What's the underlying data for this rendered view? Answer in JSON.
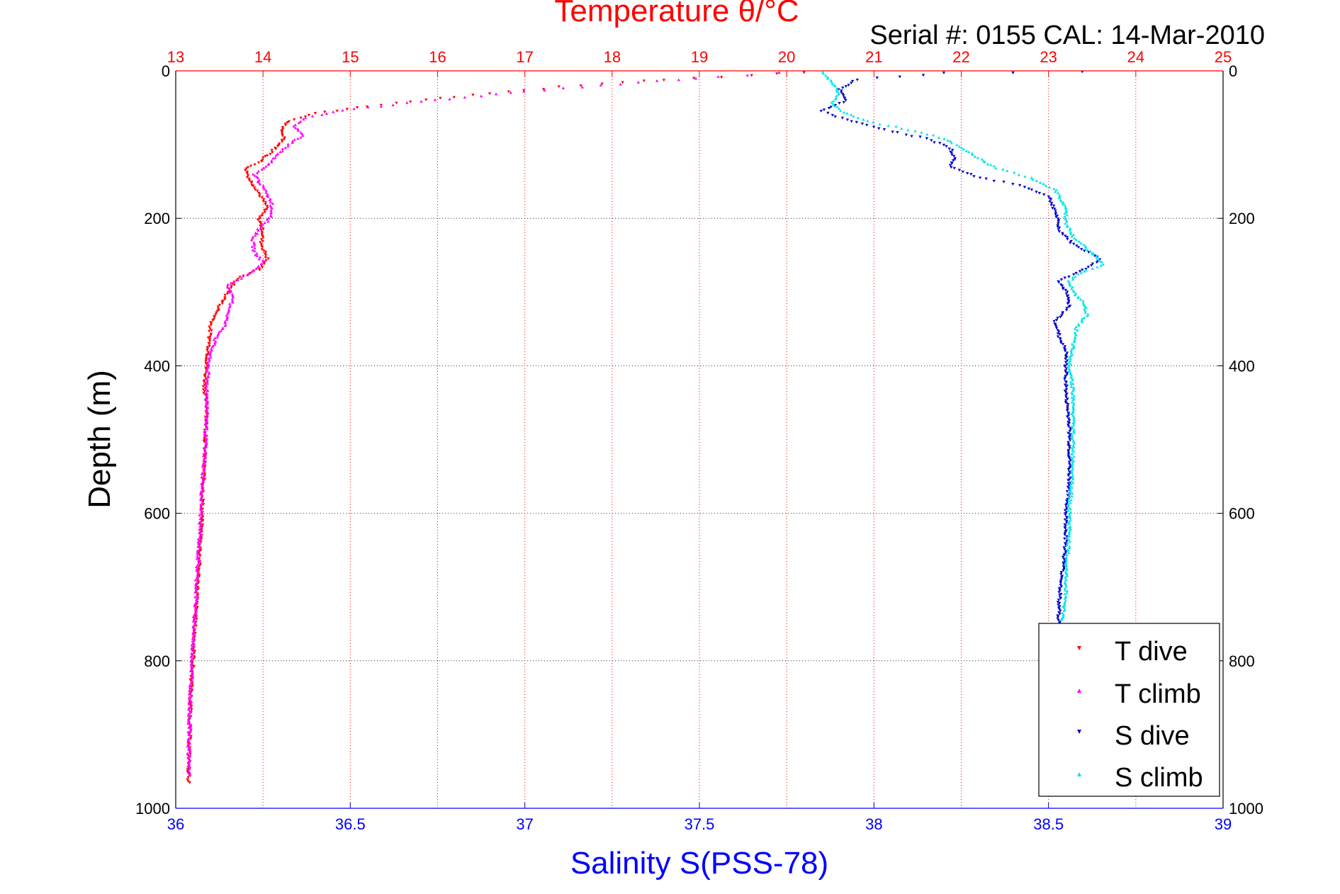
{
  "chart_data": {
    "type": "scatter",
    "title": "Temperature θ/°C",
    "annotation": "Serial #: 0155  CAL: 14-Mar-2010",
    "ylabel": "Depth (m)",
    "xlabel_bottom": "Salinity S(PSS-78)",
    "ylim": [
      0,
      1000
    ],
    "y_reversed": true,
    "x_bottom_lim": [
      36,
      39
    ],
    "x_top_lim": [
      13,
      25
    ],
    "y_ticks": [
      0,
      200,
      400,
      600,
      800,
      1000
    ],
    "x_bottom_ticks": [
      36,
      36.5,
      37,
      37.5,
      38,
      38.5,
      39
    ],
    "x_top_ticks": [
      13,
      14,
      15,
      16,
      17,
      18,
      19,
      20,
      21,
      22,
      23,
      24,
      25
    ],
    "grid": true,
    "legend_position": "bottom-right",
    "colors": {
      "temperature_axis": "#ff0000",
      "salinity_axis": "#0000ff",
      "t_dive": "#ff0000",
      "t_climb": "#ff00ff",
      "s_dive": "#0000cc",
      "s_climb": "#00e5e5"
    },
    "series": [
      {
        "name": "T dive",
        "axis": "top",
        "marker": "triangle-down",
        "points": [
          [
            20.2,
            2
          ],
          [
            19.6,
            6
          ],
          [
            18.6,
            12
          ],
          [
            17.4,
            22
          ],
          [
            16.2,
            35
          ],
          [
            15.2,
            48
          ],
          [
            14.6,
            58
          ],
          [
            14.3,
            68
          ],
          [
            14.2,
            80
          ],
          [
            14.25,
            92
          ],
          [
            14.1,
            110
          ],
          [
            13.95,
            125
          ],
          [
            13.8,
            133
          ],
          [
            13.85,
            148
          ],
          [
            13.95,
            165
          ],
          [
            14.05,
            185
          ],
          [
            13.95,
            200
          ],
          [
            14.0,
            218
          ],
          [
            13.98,
            235
          ],
          [
            14.05,
            255
          ],
          [
            13.95,
            270
          ],
          [
            13.7,
            282
          ],
          [
            13.6,
            300
          ],
          [
            13.5,
            320
          ],
          [
            13.4,
            345
          ],
          [
            13.38,
            375
          ],
          [
            13.35,
            400
          ],
          [
            13.33,
            430
          ],
          [
            13.36,
            460
          ],
          [
            13.34,
            500
          ],
          [
            13.32,
            550
          ],
          [
            13.3,
            600
          ],
          [
            13.28,
            650
          ],
          [
            13.25,
            700
          ],
          [
            13.22,
            750
          ],
          [
            13.2,
            800
          ],
          [
            13.17,
            850
          ],
          [
            13.16,
            900
          ],
          [
            13.15,
            945
          ],
          [
            13.15,
            965
          ]
        ]
      },
      {
        "name": "T climb",
        "axis": "top",
        "marker": "triangle-up",
        "points": [
          [
            19.9,
            3
          ],
          [
            19.2,
            8
          ],
          [
            18.3,
            16
          ],
          [
            17.0,
            28
          ],
          [
            15.8,
            42
          ],
          [
            14.9,
            54
          ],
          [
            14.5,
            64
          ],
          [
            14.35,
            75
          ],
          [
            14.45,
            88
          ],
          [
            14.3,
            100
          ],
          [
            14.15,
            115
          ],
          [
            14.05,
            128
          ],
          [
            13.9,
            140
          ],
          [
            14.0,
            158
          ],
          [
            14.1,
            178
          ],
          [
            14.1,
            198
          ],
          [
            13.95,
            215
          ],
          [
            13.88,
            230
          ],
          [
            13.9,
            245
          ],
          [
            14.0,
            260
          ],
          [
            13.85,
            275
          ],
          [
            13.6,
            290
          ],
          [
            13.65,
            310
          ],
          [
            13.6,
            330
          ],
          [
            13.55,
            348
          ],
          [
            13.45,
            365
          ],
          [
            13.38,
            390
          ],
          [
            13.36,
            420
          ],
          [
            13.36,
            450
          ],
          [
            13.35,
            480
          ],
          [
            13.33,
            520
          ],
          [
            13.3,
            570
          ],
          [
            13.28,
            620
          ],
          [
            13.25,
            670
          ],
          [
            13.23,
            720
          ],
          [
            13.2,
            770
          ],
          [
            13.18,
            820
          ],
          [
            13.16,
            870
          ],
          [
            13.15,
            920
          ],
          [
            13.15,
            955
          ]
        ]
      },
      {
        "name": "S dive",
        "axis": "bottom",
        "marker": "triangle-down",
        "points": [
          [
            38.6,
            1
          ],
          [
            38.2,
            3
          ],
          [
            37.95,
            12
          ],
          [
            37.9,
            25
          ],
          [
            37.92,
            40
          ],
          [
            37.85,
            55
          ],
          [
            37.95,
            70
          ],
          [
            38.05,
            82
          ],
          [
            38.15,
            92
          ],
          [
            38.22,
            105
          ],
          [
            38.23,
            118
          ],
          [
            38.22,
            130
          ],
          [
            38.3,
            145
          ],
          [
            38.42,
            155
          ],
          [
            38.5,
            170
          ],
          [
            38.52,
            190
          ],
          [
            38.53,
            215
          ],
          [
            38.57,
            235
          ],
          [
            38.65,
            255
          ],
          [
            38.6,
            270
          ],
          [
            38.53,
            285
          ],
          [
            38.55,
            300
          ],
          [
            38.56,
            318
          ],
          [
            38.52,
            340
          ],
          [
            38.53,
            360
          ],
          [
            38.55,
            380
          ],
          [
            38.55,
            410
          ],
          [
            38.55,
            440
          ],
          [
            38.56,
            480
          ],
          [
            38.56,
            520
          ],
          [
            38.56,
            560
          ],
          [
            38.55,
            600
          ],
          [
            38.55,
            640
          ],
          [
            38.54,
            680
          ],
          [
            38.53,
            720
          ],
          [
            38.53,
            755
          ]
        ]
      },
      {
        "name": "S climb",
        "axis": "bottom",
        "marker": "triangle-up",
        "points": [
          [
            37.85,
            2
          ],
          [
            37.88,
            15
          ],
          [
            37.9,
            30
          ],
          [
            37.88,
            45
          ],
          [
            37.92,
            58
          ],
          [
            37.98,
            68
          ],
          [
            38.1,
            80
          ],
          [
            38.2,
            92
          ],
          [
            38.25,
            104
          ],
          [
            38.3,
            118
          ],
          [
            38.35,
            132
          ],
          [
            38.45,
            145
          ],
          [
            38.52,
            162
          ],
          [
            38.55,
            185
          ],
          [
            38.55,
            205
          ],
          [
            38.57,
            225
          ],
          [
            38.62,
            245
          ],
          [
            38.66,
            262
          ],
          [
            38.6,
            272
          ],
          [
            38.56,
            285
          ],
          [
            38.57,
            300
          ],
          [
            38.6,
            315
          ],
          [
            38.61,
            330
          ],
          [
            38.58,
            350
          ],
          [
            38.57,
            370
          ],
          [
            38.56,
            395
          ],
          [
            38.57,
            430
          ],
          [
            38.57,
            470
          ],
          [
            38.57,
            510
          ],
          [
            38.57,
            550
          ],
          [
            38.56,
            590
          ],
          [
            38.56,
            630
          ],
          [
            38.55,
            670
          ],
          [
            38.55,
            710
          ],
          [
            38.54,
            745
          ]
        ]
      }
    ]
  }
}
